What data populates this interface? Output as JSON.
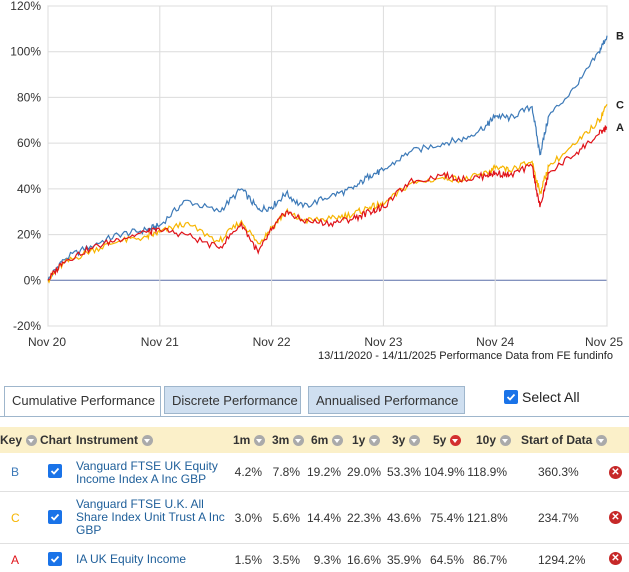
{
  "chart_data": {
    "type": "line",
    "title": "",
    "xlabel": "",
    "ylabel": "",
    "x_ticks": [
      "Nov 20",
      "Nov 21",
      "Nov 22",
      "Nov 23",
      "Nov 24",
      "Nov 25"
    ],
    "y_ticks": [
      "120%",
      "100%",
      "80%",
      "60%",
      "40%",
      "20%",
      "0%",
      "-20%"
    ],
    "ylim": [
      -20,
      120
    ],
    "xlim": [
      2020.87,
      2025.87
    ],
    "grid": true,
    "x": [
      2020.87,
      2021.0,
      2021.25,
      2021.5,
      2021.75,
      2021.87,
      2022.1,
      2022.4,
      2022.6,
      2022.75,
      2022.87,
      2023.0,
      2023.15,
      2023.4,
      2023.6,
      2023.75,
      2023.87,
      2024.1,
      2024.4,
      2024.6,
      2024.8,
      2024.87,
      2025.0,
      2025.2,
      2025.27,
      2025.35,
      2025.6,
      2025.8,
      2025.87
    ],
    "series": [
      {
        "name": "B",
        "color": "#3d7ab8",
        "values": [
          0,
          9,
          15,
          20,
          22,
          24,
          35,
          30,
          40,
          31,
          32,
          38,
          32,
          37,
          40,
          46,
          48,
          56,
          60,
          62,
          68,
          72,
          71,
          76,
          55,
          72,
          85,
          100,
          107
        ]
      },
      {
        "name": "C",
        "color": "#f7b500",
        "values": [
          0,
          7,
          13,
          17,
          19,
          21,
          25,
          17,
          26,
          16,
          23,
          30,
          26,
          27,
          29,
          32,
          33,
          42,
          45,
          44,
          47,
          49,
          48,
          52,
          38,
          50,
          60,
          70,
          77
        ]
      },
      {
        "name": "A",
        "color": "#e0131a",
        "values": [
          0,
          8,
          14,
          18,
          21,
          22,
          20,
          14,
          25,
          12,
          22,
          30,
          26,
          25,
          27,
          30,
          32,
          43,
          46,
          44,
          46,
          47,
          46,
          50,
          32,
          47,
          56,
          64,
          67
        ]
      }
    ]
  },
  "performance_note": "13/11/2020 - 14/11/2025 Performance Data from FE fundinfo",
  "tabs": [
    {
      "label": "Cumulative Performance",
      "active": true
    },
    {
      "label": "Discrete Performance",
      "active": false
    },
    {
      "label": "Annualised Performance",
      "active": false
    }
  ],
  "select_all_label": "Select All",
  "columns": {
    "key": "Key",
    "chart": "Chart",
    "instrument": "Instrument",
    "m1": "1m",
    "m3": "3m",
    "m6": "6m",
    "y1": "1y",
    "y3": "3y",
    "y5": "5y",
    "y10": "10y",
    "start": "Start of Data"
  },
  "rows": [
    {
      "key": "B",
      "key_color": "#3d7ab8",
      "instrument": "Vanguard FTSE UK Equity Income Index A Inc GBP",
      "m1": "4.2%",
      "m3": "7.8%",
      "m6": "19.2%",
      "y1": "29.0%",
      "y3": "53.3%",
      "y5": "104.9%",
      "y10": "118.9%",
      "start": "360.3%"
    },
    {
      "key": "C",
      "key_color": "#f7b500",
      "instrument": "Vanguard FTSE U.K. All Share Index Unit Trust A Inc GBP",
      "m1": "3.0%",
      "m3": "5.6%",
      "m6": "14.4%",
      "y1": "22.3%",
      "y3": "43.6%",
      "y5": "75.4%",
      "y10": "121.8%",
      "start": "234.7%"
    },
    {
      "key": "A",
      "key_color": "#e0131a",
      "instrument": "IA UK Equity Income",
      "m1": "1.5%",
      "m3": "3.5%",
      "m6": "9.3%",
      "y1": "16.6%",
      "y3": "35.9%",
      "y5": "64.5%",
      "y10": "86.7%",
      "start": "1294.2%"
    }
  ]
}
